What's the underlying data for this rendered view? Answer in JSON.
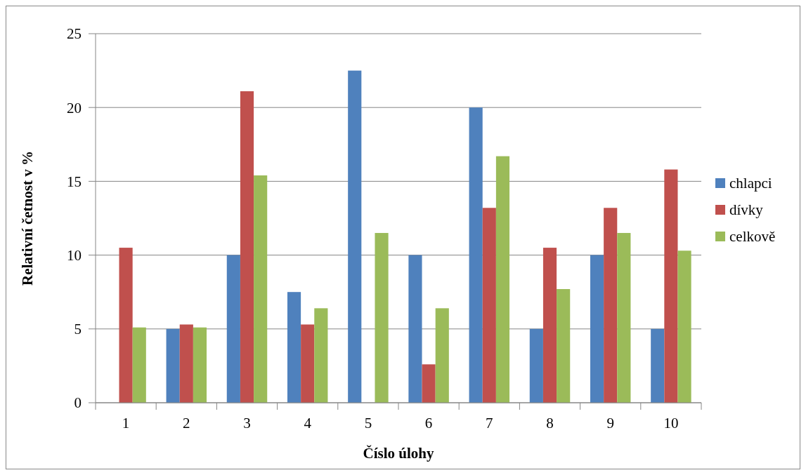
{
  "chart_data": {
    "type": "bar",
    "xlabel": "Číslo úlohy",
    "ylabel": "Relativní četnost v %",
    "categories": [
      "1",
      "2",
      "3",
      "4",
      "5",
      "6",
      "7",
      "8",
      "9",
      "10"
    ],
    "series": [
      {
        "name": "chlapci",
        "color": "#4f81bd",
        "values": [
          0,
          5,
          10,
          7.5,
          22.5,
          10,
          20,
          5,
          10,
          5
        ]
      },
      {
        "name": "dívky",
        "color": "#c0504d",
        "values": [
          10.5,
          5.3,
          21.1,
          5.3,
          0,
          2.6,
          13.2,
          10.5,
          13.2,
          15.8
        ]
      },
      {
        "name": "celkově",
        "color": "#9bbb59",
        "values": [
          5.1,
          5.1,
          15.4,
          6.4,
          11.5,
          6.4,
          16.7,
          7.7,
          11.5,
          10.3
        ]
      }
    ],
    "ylim": [
      0,
      25
    ],
    "yticks": [
      0,
      5,
      10,
      15,
      20,
      25
    ],
    "grid": "y",
    "legend": "right"
  }
}
